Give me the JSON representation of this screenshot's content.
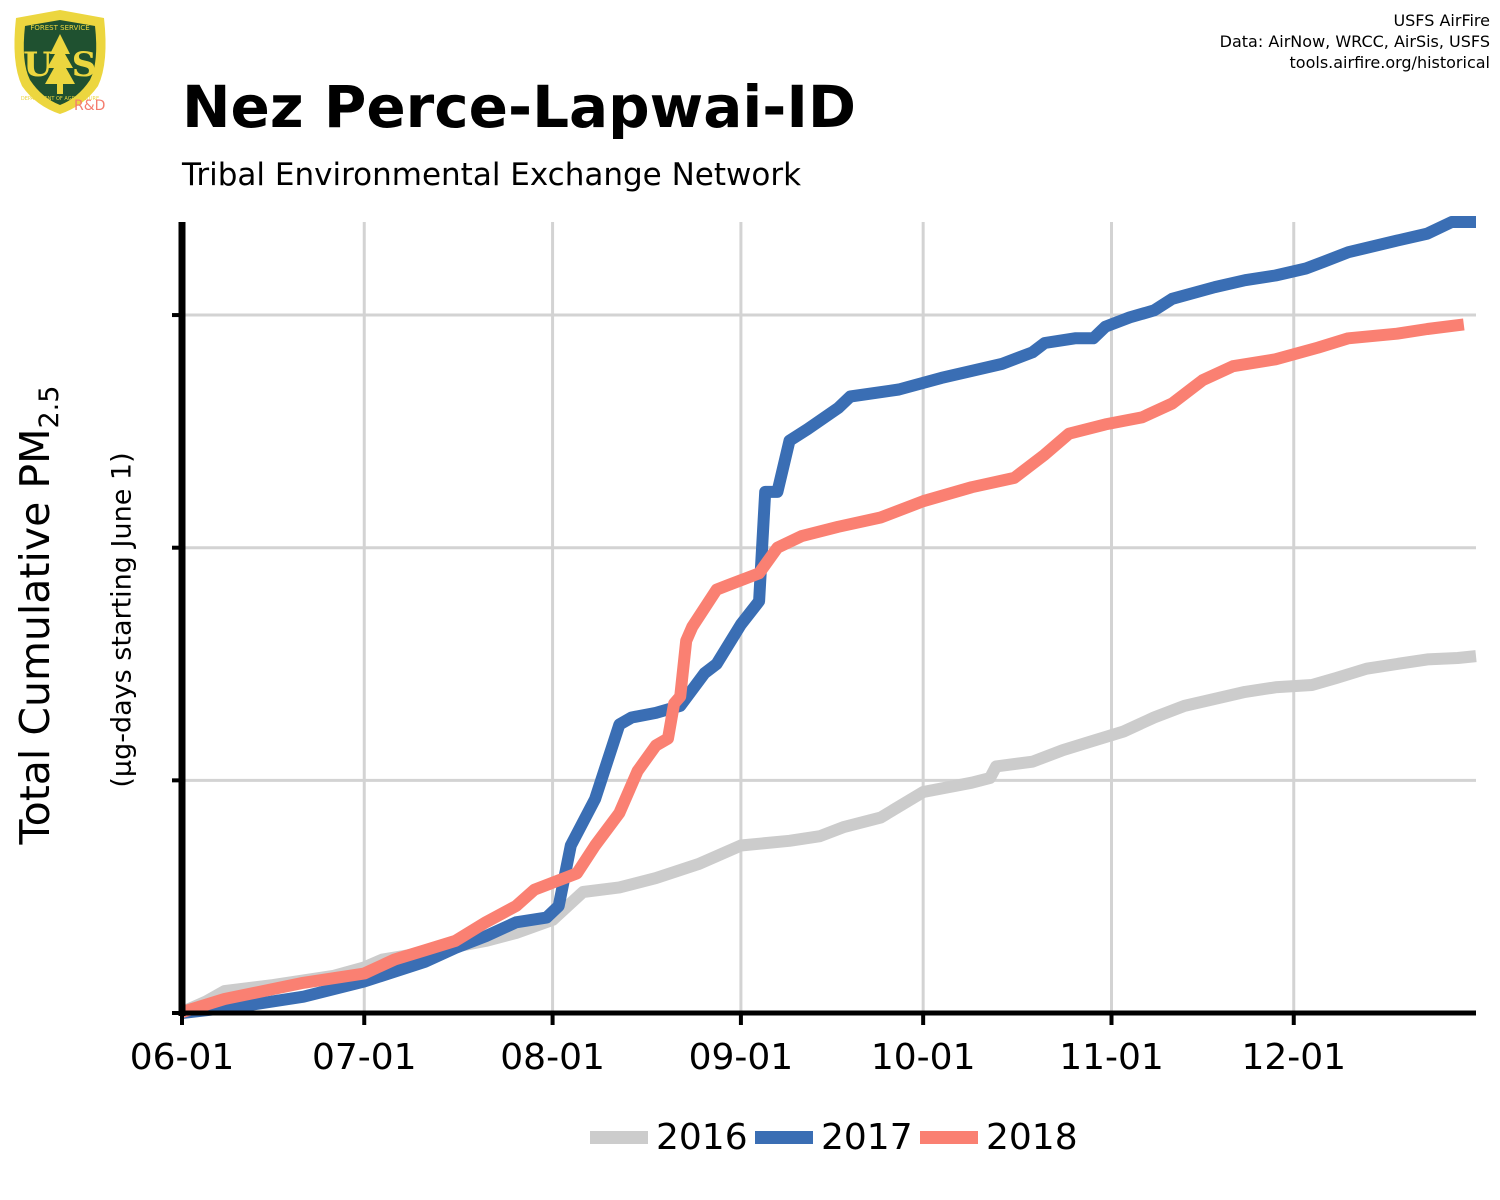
{
  "header": {
    "title": "Nez Perce-Lapwai-ID",
    "subtitle": "Tribal Environmental Exchange Network",
    "credits": [
      "USFS AirFire",
      "Data: AirNow, WRCC, AirSis, USFS",
      "tools.airfire.org/historical"
    ],
    "logo_text": "R&D",
    "logo_lettering": [
      "U",
      "S",
      "FOREST SERVICE",
      "DEPARTMENT OF AGRICULTURE"
    ]
  },
  "colors": {
    "s2016": "#cccccc",
    "s2017": "#3a6eb4",
    "s2018": "#fa8072",
    "grid": "#d3d3d3",
    "axis": "#000000",
    "logo_green": "#1f5130",
    "logo_gold": "#ecd63f"
  },
  "chart_data": {
    "type": "line",
    "title": "Nez Perce-Lapwai-ID",
    "subtitle": "Tribal Environmental Exchange Network",
    "ylabel_main": "Total Cumulative PM",
    "ylabel_subscript": "2.5",
    "ylabel_sub": "(µg-days starting June 1)",
    "x_ticks": [
      "06-01",
      "07-01",
      "08-01",
      "09-01",
      "10-01",
      "11-01",
      "12-01"
    ],
    "x_tick_days": [
      0,
      30,
      61,
      92,
      122,
      153,
      183
    ],
    "xlim": [
      0,
      213
    ],
    "ylim": [
      0,
      17
    ],
    "y_gridlines": [
      0,
      5,
      10,
      15
    ],
    "y_tick_labels_shown": false,
    "grid": true,
    "legend_position": "bottom",
    "series": [
      {
        "name": "2016",
        "color_key": "s2016",
        "points": [
          [
            0,
            0.02
          ],
          [
            4,
            0.25
          ],
          [
            7,
            0.47
          ],
          [
            15,
            0.6
          ],
          [
            25,
            0.8
          ],
          [
            30,
            0.98
          ],
          [
            33,
            1.15
          ],
          [
            40,
            1.3
          ],
          [
            50,
            1.55
          ],
          [
            55,
            1.72
          ],
          [
            61,
            2.0
          ],
          [
            66,
            2.6
          ],
          [
            72,
            2.7
          ],
          [
            78,
            2.9
          ],
          [
            85,
            3.2
          ],
          [
            92,
            3.6
          ],
          [
            100,
            3.7
          ],
          [
            105,
            3.8
          ],
          [
            109,
            4.0
          ],
          [
            115,
            4.2
          ],
          [
            122,
            4.75
          ],
          [
            130,
            4.95
          ],
          [
            133,
            5.05
          ],
          [
            134,
            5.3
          ],
          [
            140,
            5.4
          ],
          [
            145,
            5.65
          ],
          [
            150,
            5.85
          ],
          [
            155,
            6.05
          ],
          [
            160,
            6.35
          ],
          [
            165,
            6.6
          ],
          [
            170,
            6.75
          ],
          [
            175,
            6.9
          ],
          [
            180,
            7.0
          ],
          [
            186,
            7.05
          ],
          [
            190,
            7.2
          ],
          [
            195,
            7.4
          ],
          [
            200,
            7.5
          ],
          [
            205,
            7.6
          ],
          [
            210,
            7.63
          ],
          [
            213,
            7.67
          ]
        ]
      },
      {
        "name": "2017",
        "color_key": "s2017",
        "points": [
          [
            0,
            0.0
          ],
          [
            10,
            0.15
          ],
          [
            20,
            0.35
          ],
          [
            30,
            0.68
          ],
          [
            40,
            1.1
          ],
          [
            45,
            1.4
          ],
          [
            50,
            1.65
          ],
          [
            55,
            1.95
          ],
          [
            60,
            2.05
          ],
          [
            62,
            2.3
          ],
          [
            64,
            3.6
          ],
          [
            68,
            4.6
          ],
          [
            72,
            6.2
          ],
          [
            74,
            6.35
          ],
          [
            78,
            6.45
          ],
          [
            82,
            6.6
          ],
          [
            86,
            7.3
          ],
          [
            88,
            7.5
          ],
          [
            92,
            8.35
          ],
          [
            95,
            8.85
          ],
          [
            96,
            11.2
          ],
          [
            98,
            11.2
          ],
          [
            100,
            12.3
          ],
          [
            103,
            12.55
          ],
          [
            108,
            13.0
          ],
          [
            110,
            13.25
          ],
          [
            118,
            13.4
          ],
          [
            125,
            13.65
          ],
          [
            130,
            13.8
          ],
          [
            135,
            13.95
          ],
          [
            140,
            14.2
          ],
          [
            142,
            14.4
          ],
          [
            147,
            14.5
          ],
          [
            150,
            14.5
          ],
          [
            152,
            14.75
          ],
          [
            156,
            14.95
          ],
          [
            160,
            15.1
          ],
          [
            163,
            15.35
          ],
          [
            170,
            15.6
          ],
          [
            175,
            15.75
          ],
          [
            180,
            15.85
          ],
          [
            185,
            16.0
          ],
          [
            188,
            16.15
          ],
          [
            192,
            16.35
          ],
          [
            200,
            16.6
          ],
          [
            205,
            16.75
          ],
          [
            209,
            17.0
          ],
          [
            213,
            17.0
          ]
        ]
      },
      {
        "name": "2018",
        "color_key": "s2018",
        "points": [
          [
            0,
            0.02
          ],
          [
            7,
            0.3
          ],
          [
            20,
            0.65
          ],
          [
            30,
            0.85
          ],
          [
            35,
            1.15
          ],
          [
            40,
            1.35
          ],
          [
            45,
            1.55
          ],
          [
            50,
            1.95
          ],
          [
            55,
            2.3
          ],
          [
            58,
            2.65
          ],
          [
            61,
            2.8
          ],
          [
            65,
            3.0
          ],
          [
            68,
            3.6
          ],
          [
            72,
            4.3
          ],
          [
            75,
            5.2
          ],
          [
            78,
            5.75
          ],
          [
            80,
            5.9
          ],
          [
            81,
            6.65
          ],
          [
            82,
            6.8
          ],
          [
            83,
            8.0
          ],
          [
            84,
            8.3
          ],
          [
            88,
            9.1
          ],
          [
            90,
            9.2
          ],
          [
            95,
            9.45
          ],
          [
            98,
            10.0
          ],
          [
            102,
            10.25
          ],
          [
            108,
            10.45
          ],
          [
            115,
            10.65
          ],
          [
            122,
            11.0
          ],
          [
            130,
            11.3
          ],
          [
            137,
            11.5
          ],
          [
            142,
            12.0
          ],
          [
            146,
            12.45
          ],
          [
            152,
            12.65
          ],
          [
            158,
            12.8
          ],
          [
            163,
            13.1
          ],
          [
            168,
            13.6
          ],
          [
            173,
            13.9
          ],
          [
            180,
            14.05
          ],
          [
            187,
            14.3
          ],
          [
            192,
            14.5
          ],
          [
            200,
            14.6
          ],
          [
            205,
            14.7
          ],
          [
            211,
            14.8
          ]
        ]
      }
    ]
  }
}
